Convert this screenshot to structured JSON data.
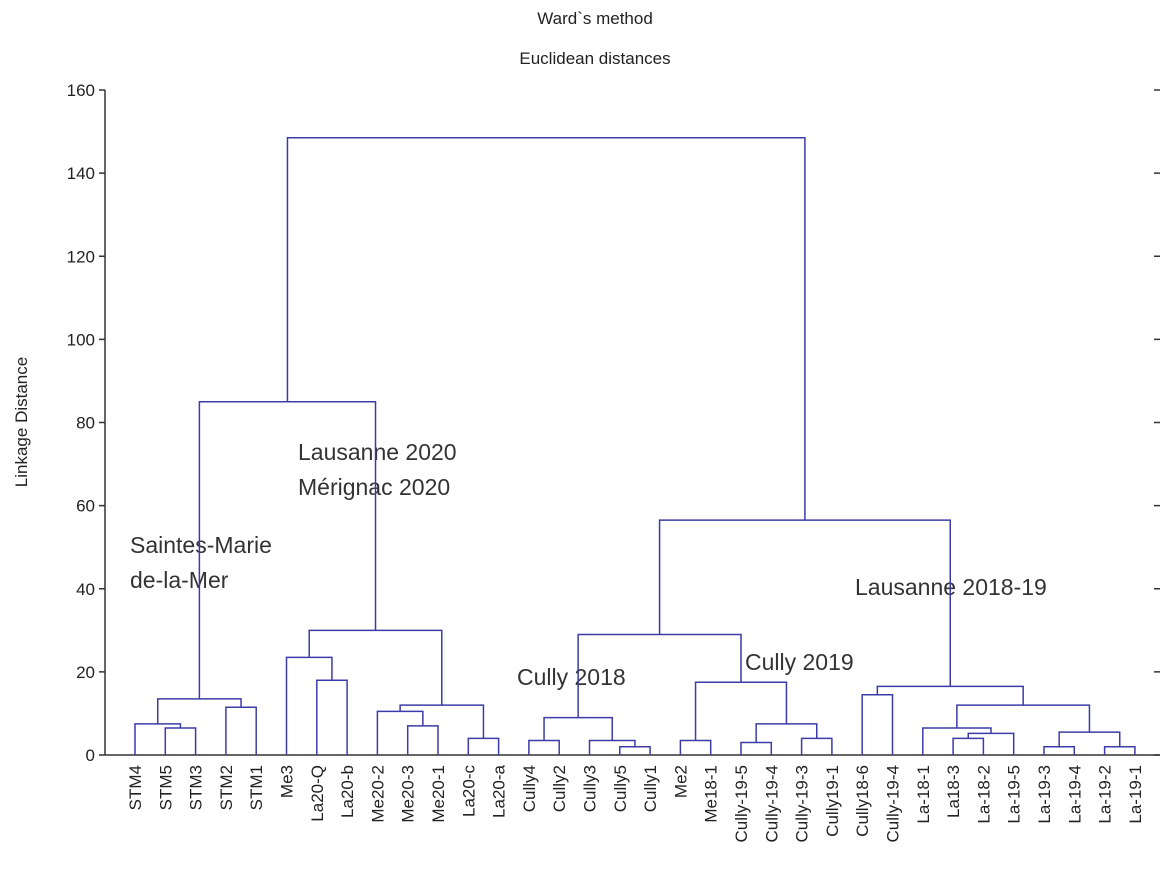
{
  "chart_data": {
    "type": "dendrogram",
    "title": "Ward`s method",
    "subtitle": "Euclidean distances",
    "ylabel": "Linkage Distance",
    "ylim": [
      0,
      160
    ],
    "yticks": [
      0,
      20,
      40,
      60,
      80,
      100,
      120,
      140,
      160
    ],
    "color": "#3c3ca8",
    "leaves": [
      "STM4",
      "STM5",
      "STM3",
      "STM2",
      "STM1",
      "Me3",
      "La20-Q",
      "La20-b",
      "Me20-2",
      "Me20-3",
      "Me20-1",
      "La20-c",
      "La20-a",
      "Cully4",
      "Cully2",
      "Cully3",
      "Cully5",
      "Cully1",
      "Me2",
      "Me18-1",
      "Cully-19-5",
      "Cully-19-4",
      "Cully-19-3",
      "Cully19-1",
      "Cully18-6",
      "Cully-19-4",
      "La-18-1",
      "La18-3",
      "La-18-2",
      "La-19-5",
      "La-19-3",
      "La-19-4",
      "La-19-2",
      "La-19-1"
    ],
    "merges": [
      {
        "left": 1,
        "right": 2,
        "height": 6.5
      },
      {
        "left": 0,
        "right": 34,
        "height": 7.5
      },
      {
        "left": 3,
        "right": 4,
        "height": 11.5
      },
      {
        "left": 35,
        "right": 36,
        "height": 13.5
      },
      {
        "left": 6,
        "right": 7,
        "height": 18
      },
      {
        "left": 5,
        "right": 38,
        "height": 23.5
      },
      {
        "left": 9,
        "right": 10,
        "height": 7
      },
      {
        "left": 8,
        "right": 40,
        "height": 10.5
      },
      {
        "left": 11,
        "right": 12,
        "height": 4
      },
      {
        "left": 41,
        "right": 42,
        "height": 12
      },
      {
        "left": 39,
        "right": 43,
        "height": 30
      },
      {
        "left": 37,
        "right": 44,
        "height": 85
      },
      {
        "left": 16,
        "right": 17,
        "height": 2
      },
      {
        "left": 15,
        "right": 46,
        "height": 3.5
      },
      {
        "left": 13,
        "right": 14,
        "height": 3.5
      },
      {
        "left": 48,
        "right": 47,
        "height": 9
      },
      {
        "left": 18,
        "right": 19,
        "height": 3.5
      },
      {
        "left": 20,
        "right": 21,
        "height": 3
      },
      {
        "left": 22,
        "right": 23,
        "height": 4
      },
      {
        "left": 51,
        "right": 52,
        "height": 7.5
      },
      {
        "left": 50,
        "right": 53,
        "height": 17.5
      },
      {
        "left": 49,
        "right": 54,
        "height": 29
      },
      {
        "left": 24,
        "right": 25,
        "height": 14.5
      },
      {
        "left": 27,
        "right": 28,
        "height": 4
      },
      {
        "left": 57,
        "right": 29,
        "height": 5.2
      },
      {
        "left": 26,
        "right": 58,
        "height": 6.5
      },
      {
        "left": 30,
        "right": 31,
        "height": 2
      },
      {
        "left": 32,
        "right": 33,
        "height": 2
      },
      {
        "left": 60,
        "right": 61,
        "height": 5.5
      },
      {
        "left": 59,
        "right": 62,
        "height": 12
      },
      {
        "left": 56,
        "right": 63,
        "height": 16.5
      },
      {
        "left": 55,
        "right": 64,
        "height": 56.5
      },
      {
        "left": 45,
        "right": 65,
        "height": 148.5
      }
    ],
    "annotations": [
      [
        "Lausanne 2020",
        "Mérignac 2020"
      ],
      [
        "Saintes-Marie",
        "de-la-Mer"
      ],
      [
        "Cully 2018"
      ],
      [
        "Cully 2019"
      ],
      [
        "Lausanne 2018-19"
      ]
    ]
  }
}
